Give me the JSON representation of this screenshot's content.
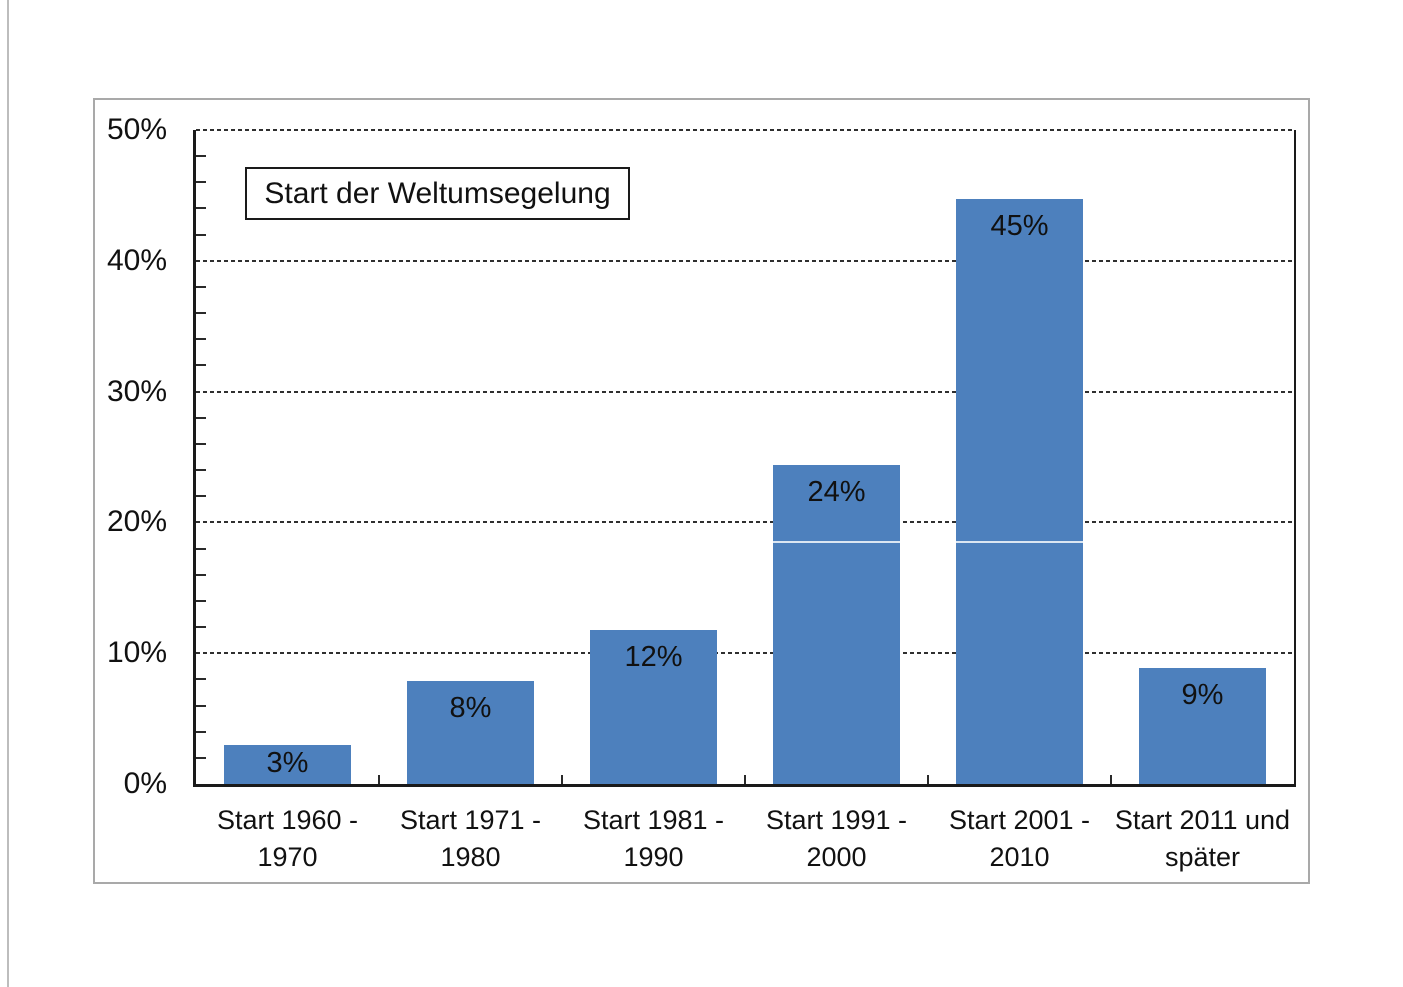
{
  "chart_data": {
    "type": "bar",
    "title": "Start der Weltumsegelung",
    "categories": [
      [
        "Start 1960 -",
        "1970"
      ],
      [
        "Start 1971 -",
        "1980"
      ],
      [
        "Start 1981 -",
        "1990"
      ],
      [
        "Start 1991 -",
        "2000"
      ],
      [
        "Start 2001 -",
        "2010"
      ],
      [
        "Start 2011 und",
        "später"
      ]
    ],
    "values": [
      3,
      8,
      12,
      24,
      45,
      9
    ],
    "data_labels": [
      "3%",
      "8%",
      "12%",
      "24%",
      "45%",
      "9%"
    ],
    "bar_heights_pct": [
      3.0,
      7.9,
      11.8,
      24.4,
      44.7,
      8.9
    ],
    "y_ticks": [
      "0%",
      "10%",
      "20%",
      "30%",
      "40%",
      "50%"
    ],
    "ylim": [
      0,
      50
    ],
    "y_major_step": 10,
    "y_minor_step": 2,
    "grid": "dashed horizontal major gridlines",
    "legend": "none",
    "xlabel": "",
    "ylabel": "",
    "artifact_line_pct": 18.6,
    "colors": {
      "bar": "#4d80bd",
      "gridline": "#2f2f2f",
      "axis": "#1a1a1a",
      "chart_border": "#a9a9a9",
      "title_border": "#1a1a1a",
      "page_rule": "#bdbdbd",
      "text": "#111111"
    }
  }
}
